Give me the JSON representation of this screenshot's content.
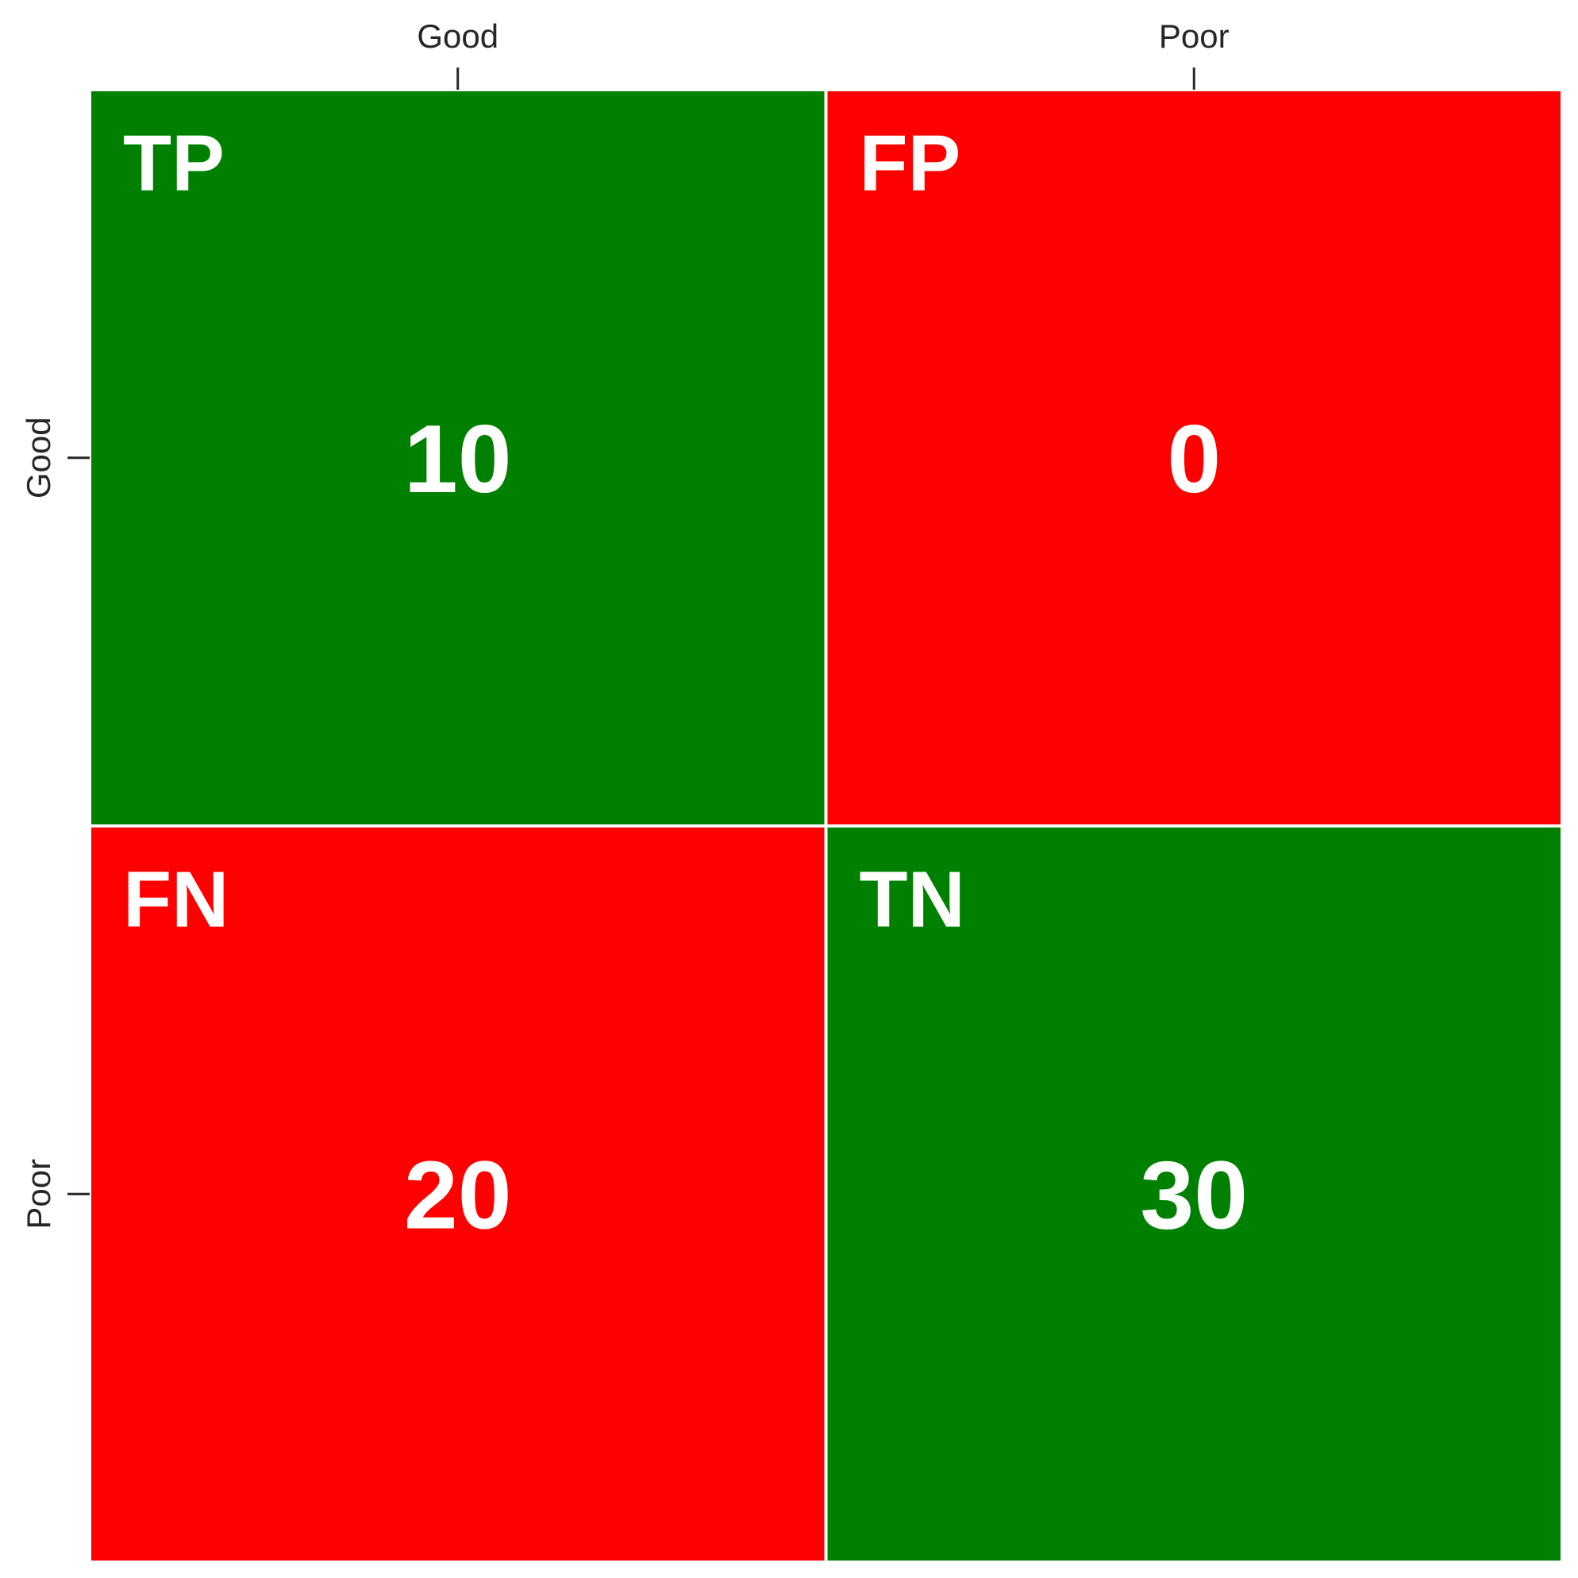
{
  "chart_data": {
    "type": "heatmap",
    "title": "",
    "xlabel": "",
    "ylabel": "",
    "x_categories": [
      "Good",
      "Poor"
    ],
    "y_categories": [
      "Good",
      "Poor"
    ],
    "x_tick_position": "top",
    "grid": false,
    "legend": "none",
    "cells": [
      {
        "row": 0,
        "col": 0,
        "label": "TP",
        "value": "10",
        "color": "#008000"
      },
      {
        "row": 0,
        "col": 1,
        "label": "FP",
        "value": "0",
        "color": "#ff0000"
      },
      {
        "row": 1,
        "col": 0,
        "label": "FN",
        "value": "20",
        "color": "#ff0000"
      },
      {
        "row": 1,
        "col": 1,
        "label": "TN",
        "value": "30",
        "color": "#008000"
      }
    ]
  }
}
